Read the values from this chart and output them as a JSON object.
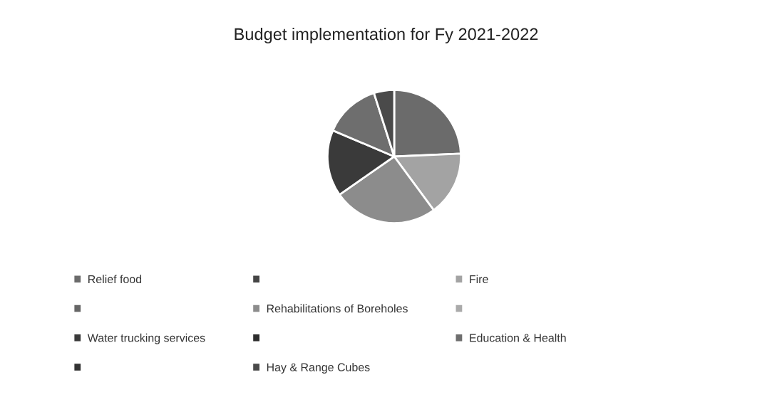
{
  "chart_data": {
    "type": "pie",
    "title": "Budget implementation for Fy 2021-2022",
    "categories": [
      "Relief food",
      null,
      "Fire",
      null,
      "Rehabilitations of Boreholes",
      null,
      "Water trucking services",
      null,
      "Education & Health",
      null,
      "Hay & Range Cubes"
    ],
    "values": [
      24.3,
      0,
      15.6,
      0,
      25.4,
      0,
      16.1,
      0,
      13.7,
      0,
      4.9
    ],
    "colors": [
      "#6b6b6b",
      "#454545",
      "#a3a3a3",
      "#666666",
      "#8c8c8c",
      "#aaaaaa",
      "#3a3a3a",
      "#2d2d2d",
      "#6e6e6e",
      "#333333",
      "#4a4a4a"
    ],
    "legend": "bottom"
  }
}
